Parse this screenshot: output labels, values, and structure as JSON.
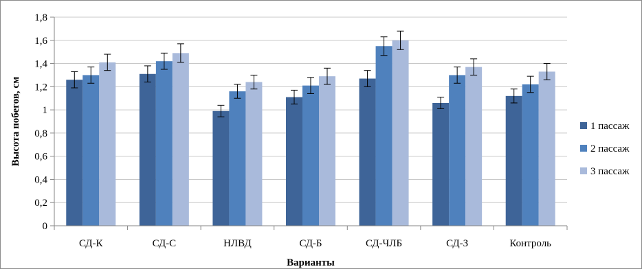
{
  "chart_data": {
    "type": "bar",
    "xlabel": "Варианты",
    "ylabel": "Высота побегов, см",
    "ylim": [
      0,
      1.8
    ],
    "ytick_step": 0.2,
    "ytick_labels": [
      "0",
      "0,2",
      "0,4",
      "0,6",
      "0,8",
      "1",
      "1,2",
      "1,4",
      "1,6",
      "1,8"
    ],
    "grid": true,
    "legend_position": "right",
    "categories": [
      "СД-К",
      "СД-С",
      "НЛВД",
      "СД-Б",
      "СД-ЧЛБ",
      "СД-З",
      "Контроль"
    ],
    "series": [
      {
        "name": "1 пассаж",
        "color": "#3e6498",
        "values": [
          1.26,
          1.31,
          0.99,
          1.11,
          1.27,
          1.06,
          1.12
        ],
        "errors": [
          0.07,
          0.07,
          0.05,
          0.06,
          0.07,
          0.05,
          0.06
        ]
      },
      {
        "name": "2 пассаж",
        "color": "#4f81bd",
        "values": [
          1.3,
          1.42,
          1.16,
          1.21,
          1.55,
          1.3,
          1.22
        ],
        "errors": [
          0.07,
          0.07,
          0.06,
          0.07,
          0.08,
          0.07,
          0.07
        ]
      },
      {
        "name": "3 пассаж",
        "color": "#a9badb",
        "values": [
          1.41,
          1.49,
          1.24,
          1.29,
          1.6,
          1.37,
          1.33
        ],
        "errors": [
          0.07,
          0.08,
          0.06,
          0.07,
          0.08,
          0.07,
          0.07
        ]
      }
    ]
  }
}
